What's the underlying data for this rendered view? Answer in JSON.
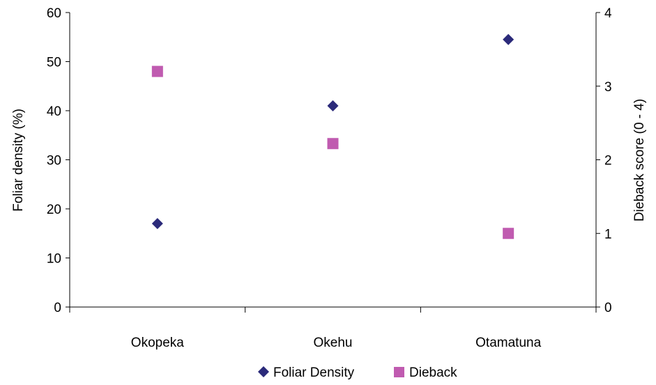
{
  "chart_data": {
    "type": "scatter",
    "categories": [
      "Okopeka",
      "Okehu",
      "Otamatuna"
    ],
    "series": [
      {
        "name": "Foliar Density",
        "axis": "left",
        "marker": "diamond",
        "color": "#2B2A7A",
        "values": [
          17,
          41,
          54.5
        ]
      },
      {
        "name": "Dieback",
        "axis": "right",
        "marker": "square",
        "color": "#C05BB0",
        "values": [
          3.2,
          2.22,
          1.0
        ]
      }
    ],
    "ylabel_left": "Foliar density (%)",
    "ylabel_right": "Dieback score (0 - 4)",
    "ylim_left": [
      0,
      60
    ],
    "yticks_left": [
      "0",
      "10",
      "20",
      "30",
      "40",
      "50",
      "60"
    ],
    "ylim_right": [
      0,
      4
    ],
    "yticks_right": [
      "0",
      "1",
      "2",
      "3",
      "4"
    ],
    "grid": false,
    "legend_position": "bottom"
  }
}
